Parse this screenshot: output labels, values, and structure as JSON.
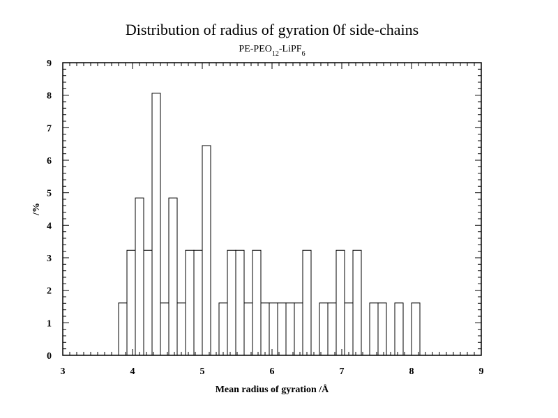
{
  "chart_data": {
    "type": "bar",
    "title": "Distribution of radius of gyration 0f side-chains",
    "subtitle": {
      "parts": [
        {
          "text": "PE-PEO",
          "sub": false
        },
        {
          "text": "12",
          "sub": true
        },
        {
          "text": "-LiPF",
          "sub": false
        },
        {
          "text": "6",
          "sub": true
        }
      ]
    },
    "xlabel": "Mean radius of gyration /Å",
    "ylabel": "/%",
    "xlim": [
      3,
      9
    ],
    "ylim": [
      0,
      9
    ],
    "x_major_ticks": [
      3,
      4,
      5,
      6,
      7,
      8,
      9
    ],
    "y_major_ticks": [
      0,
      1,
      2,
      3,
      4,
      5,
      6,
      7,
      8,
      9
    ],
    "x_minor_step": 0.1,
    "y_minor_step": 0.2,
    "grid": false,
    "bin_width": 0.12,
    "bins": [
      {
        "x": 3.86,
        "y": 1.61
      },
      {
        "x": 3.98,
        "y": 3.23
      },
      {
        "x": 4.1,
        "y": 4.84
      },
      {
        "x": 4.22,
        "y": 3.23
      },
      {
        "x": 4.34,
        "y": 8.06
      },
      {
        "x": 4.46,
        "y": 1.61
      },
      {
        "x": 4.58,
        "y": 4.84
      },
      {
        "x": 4.7,
        "y": 1.61
      },
      {
        "x": 4.82,
        "y": 3.23
      },
      {
        "x": 4.94,
        "y": 3.23
      },
      {
        "x": 5.06,
        "y": 6.45
      },
      {
        "x": 5.18,
        "y": 0
      },
      {
        "x": 5.3,
        "y": 1.61
      },
      {
        "x": 5.42,
        "y": 3.23
      },
      {
        "x": 5.54,
        "y": 3.23
      },
      {
        "x": 5.66,
        "y": 1.61
      },
      {
        "x": 5.78,
        "y": 3.23
      },
      {
        "x": 5.9,
        "y": 1.61
      },
      {
        "x": 6.02,
        "y": 1.61
      },
      {
        "x": 6.14,
        "y": 1.61
      },
      {
        "x": 6.26,
        "y": 1.61
      },
      {
        "x": 6.38,
        "y": 1.61
      },
      {
        "x": 6.5,
        "y": 3.23
      },
      {
        "x": 6.62,
        "y": 0
      },
      {
        "x": 6.74,
        "y": 1.61
      },
      {
        "x": 6.86,
        "y": 1.61
      },
      {
        "x": 6.98,
        "y": 3.23
      },
      {
        "x": 7.1,
        "y": 1.61
      },
      {
        "x": 7.22,
        "y": 3.23
      },
      {
        "x": 7.34,
        "y": 0
      },
      {
        "x": 7.46,
        "y": 1.61
      },
      {
        "x": 7.58,
        "y": 1.61
      },
      {
        "x": 7.7,
        "y": 0
      },
      {
        "x": 7.82,
        "y": 1.61
      },
      {
        "x": 7.94,
        "y": 0
      },
      {
        "x": 8.06,
        "y": 1.61
      }
    ],
    "colors": {
      "bar_stroke": "#000000",
      "bar_fill": "#ffffff",
      "axis": "#000000"
    }
  }
}
